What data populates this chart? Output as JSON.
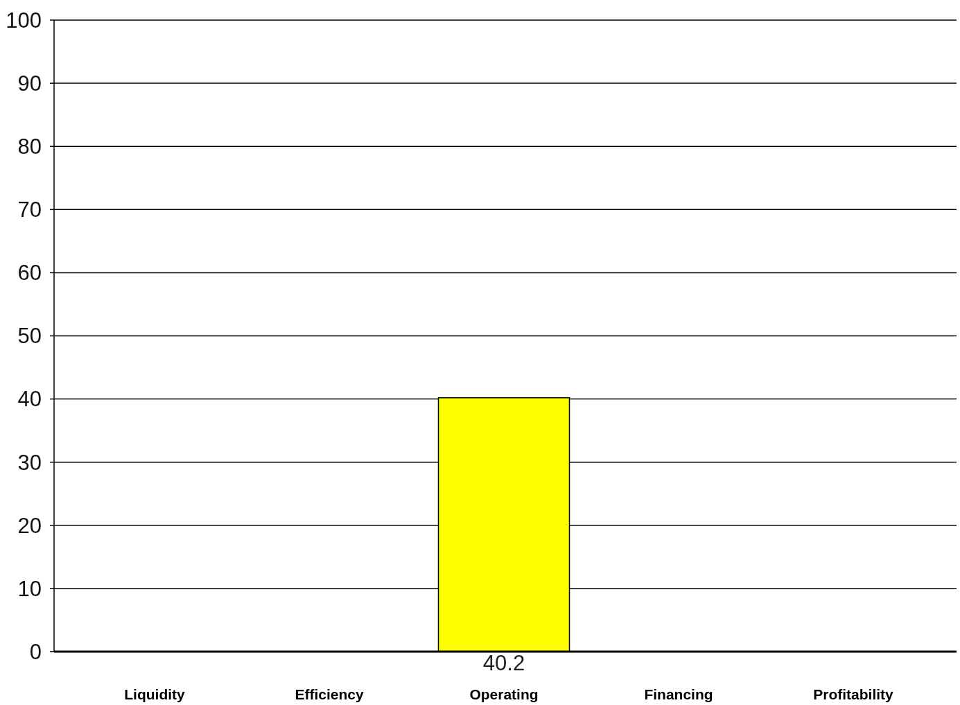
{
  "chart_data": {
    "type": "bar",
    "categories": [
      "Liquidity",
      "Efficiency",
      "Operating",
      "Financing",
      "Profitability"
    ],
    "values": [
      null,
      null,
      40.2,
      null,
      null
    ],
    "color": "#ffff00",
    "ylim": [
      0,
      100
    ],
    "yticks": [
      0,
      10,
      20,
      30,
      40,
      50,
      60,
      70,
      80,
      90,
      100
    ],
    "grid": true,
    "data_labels": true
  }
}
